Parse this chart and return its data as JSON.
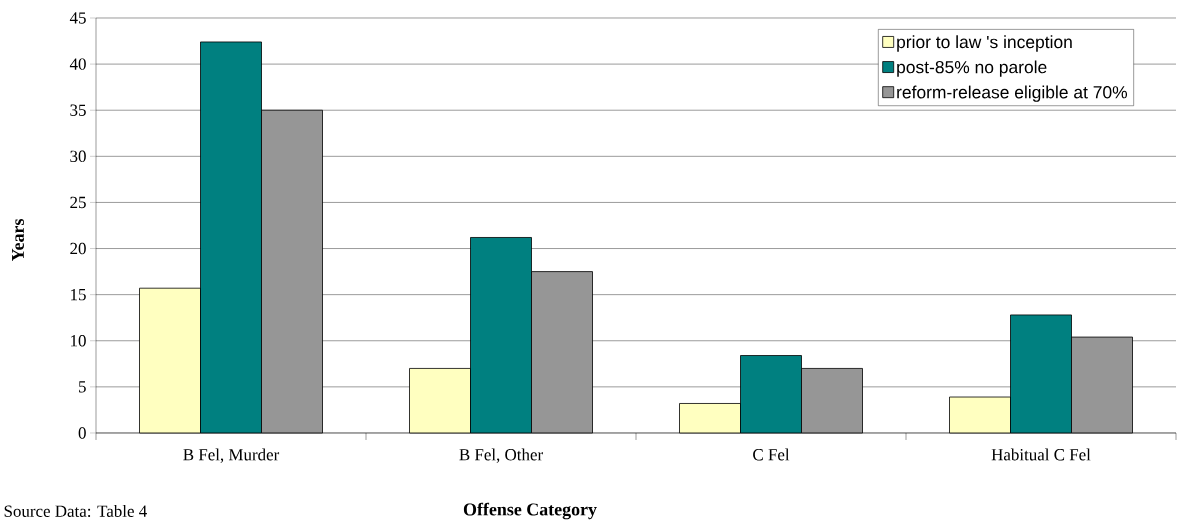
{
  "chart_data": {
    "type": "bar",
    "xlabel": "Offense Category",
    "ylabel": "Years",
    "categories": [
      "B Fel, Murder",
      "B Fel, Other",
      "C Fel",
      "Habitual C Fel"
    ],
    "series": [
      {
        "name": "prior to law 's inception",
        "color": "#ffffc0",
        "values": [
          15.7,
          7.0,
          3.2,
          3.9
        ]
      },
      {
        "name": "post-85% no parole",
        "color": "#008080",
        "values": [
          42.4,
          21.2,
          8.4,
          12.8
        ]
      },
      {
        "name": "reform-release eligible at 70%",
        "color": "#969696",
        "values": [
          35.0,
          17.5,
          7.0,
          10.4
        ]
      }
    ],
    "ylim": [
      0,
      45
    ],
    "yticks": [
      0,
      5,
      10,
      15,
      20,
      25,
      30,
      35,
      40,
      45
    ],
    "grid": "y",
    "legend": "top right",
    "annotations": [
      "Source Data: Table 4"
    ]
  }
}
